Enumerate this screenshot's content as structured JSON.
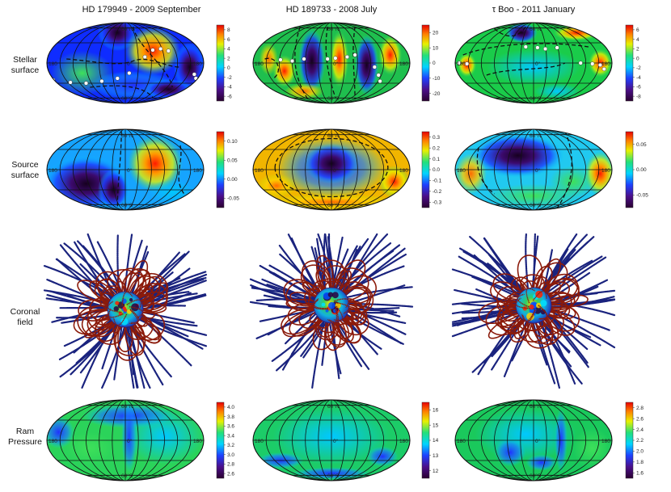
{
  "columns": [
    {
      "title": "HD 179949 - 2009 September"
    },
    {
      "title": "HD 189733 - 2008 July"
    },
    {
      "title": "τ Boo - 2011 January"
    }
  ],
  "rows": [
    {
      "label_line1": "Stellar",
      "label_line2": "surface"
    },
    {
      "label_line1": "Source",
      "label_line2": "surface"
    },
    {
      "label_line1": "Coronal",
      "label_line2": "field"
    },
    {
      "label_line1": "Ram",
      "label_line2": "Pressure"
    }
  ],
  "colorbars": {
    "stellar": [
      [
        "8",
        "6",
        "4",
        "2",
        "0",
        "-2",
        "-4",
        "-6"
      ],
      [
        "20",
        "10",
        "0",
        "-10",
        "-20"
      ],
      [
        "6",
        "4",
        "2",
        "0",
        "-2",
        "-4",
        "-6",
        "-8"
      ]
    ],
    "source": [
      [
        "0.10",
        "0.05",
        "0.00",
        "-0.05"
      ],
      [
        "0.3",
        "0.2",
        "0.1",
        "0.0",
        "-0.1",
        "-0.2",
        "-0.3"
      ],
      [
        "0.05",
        "0.00",
        "-0.05"
      ]
    ],
    "ram": [
      [
        "4.0",
        "3.8",
        "3.6",
        "3.4",
        "3.2",
        "3.0",
        "2.8",
        "2.6"
      ],
      [
        "16",
        "15",
        "14",
        "13",
        "12"
      ],
      [
        "2.8",
        "2.6",
        "2.4",
        "2.2",
        "2.0",
        "1.8",
        "1.6"
      ]
    ]
  },
  "map_labels": {
    "north": "60°N",
    "equator": "0°",
    "south": "60°S",
    "lon_left": "180",
    "lon_right": "180"
  },
  "colors": {
    "loop": "#8b1a0a",
    "open": "#1a237e",
    "contour": "#111111"
  }
}
